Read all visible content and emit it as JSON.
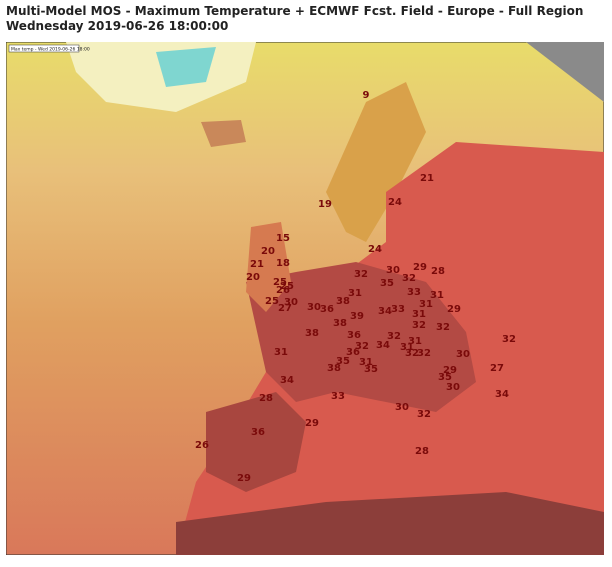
{
  "header": {
    "title": "Multi-Model MOS - Maximum Temperature + ECMWF Fcst. Field - Europe - Full Region",
    "subtitle": "Wednesday 2019-06-26 18:00:00"
  },
  "map": {
    "legend_note": "Max temp - Wed 2019-06-26 18:00",
    "stations": [
      9,
      21,
      19,
      24,
      15,
      24,
      20,
      18,
      21,
      29,
      28,
      30,
      32,
      32,
      20,
      35,
      25,
      25,
      26,
      33,
      31,
      31,
      25,
      30,
      38,
      27,
      30,
      36,
      33,
      34,
      31,
      29,
      39,
      31,
      38,
      32,
      32,
      38,
      36,
      32,
      32,
      31,
      32,
      34,
      31,
      31,
      36,
      32,
      32,
      30,
      35,
      31,
      38,
      35,
      29,
      27,
      35,
      34,
      30,
      34,
      28,
      33,
      30,
      32,
      29,
      36,
      26,
      28,
      29
    ]
  }
}
